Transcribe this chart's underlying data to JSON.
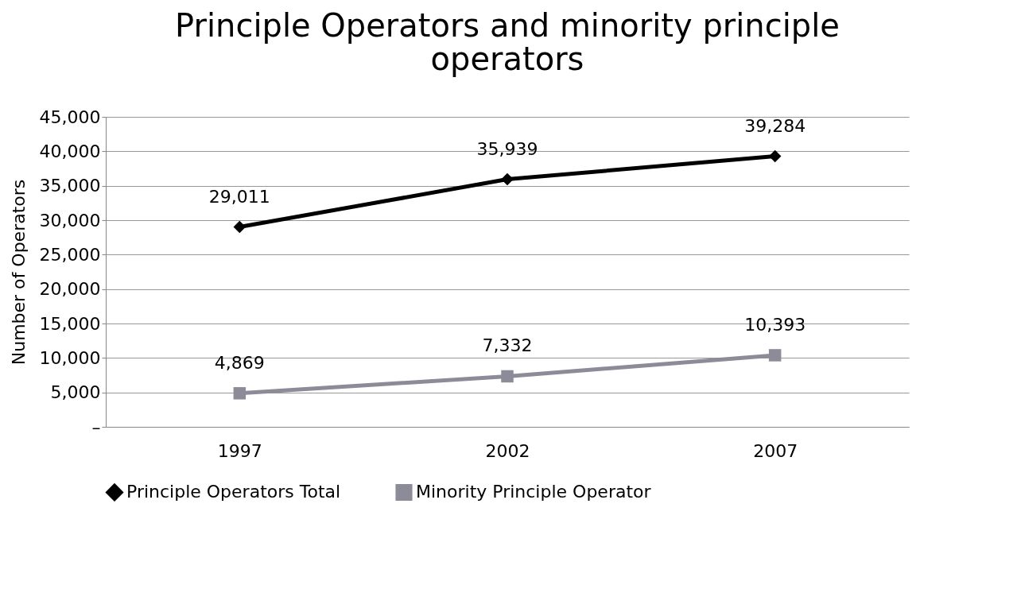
{
  "chart_data": {
    "type": "line",
    "title": "Principle Operators and minority principle operators",
    "ylabel": "Number of Operators",
    "categories": [
      "1997",
      "2002",
      "2007"
    ],
    "series": [
      {
        "name": "Principle Operators Total",
        "color": "#000000",
        "marker": "diamond",
        "values": [
          29011,
          35939,
          39284
        ],
        "value_labels": [
          "29,011",
          "35,939",
          "39,284"
        ]
      },
      {
        "name": "Minority Principle Operator",
        "color": "#8c8c98",
        "marker": "square",
        "values": [
          4869,
          7332,
          10393
        ],
        "value_labels": [
          "4,869",
          "7,332",
          "10,393"
        ]
      }
    ],
    "ylim": [
      0,
      45000
    ],
    "yticks": [
      {
        "value": 0,
        "label": "–"
      },
      {
        "value": 5000,
        "label": "5,000"
      },
      {
        "value": 10000,
        "label": "10,000"
      },
      {
        "value": 15000,
        "label": "15,000"
      },
      {
        "value": 20000,
        "label": "20,000"
      },
      {
        "value": 25000,
        "label": "25,000"
      },
      {
        "value": 30000,
        "label": "30,000"
      },
      {
        "value": 35000,
        "label": "35,000"
      },
      {
        "value": 40000,
        "label": "40,000"
      },
      {
        "value": 45000,
        "label": "45,000"
      }
    ],
    "grid": "y",
    "legend": "bottom"
  }
}
